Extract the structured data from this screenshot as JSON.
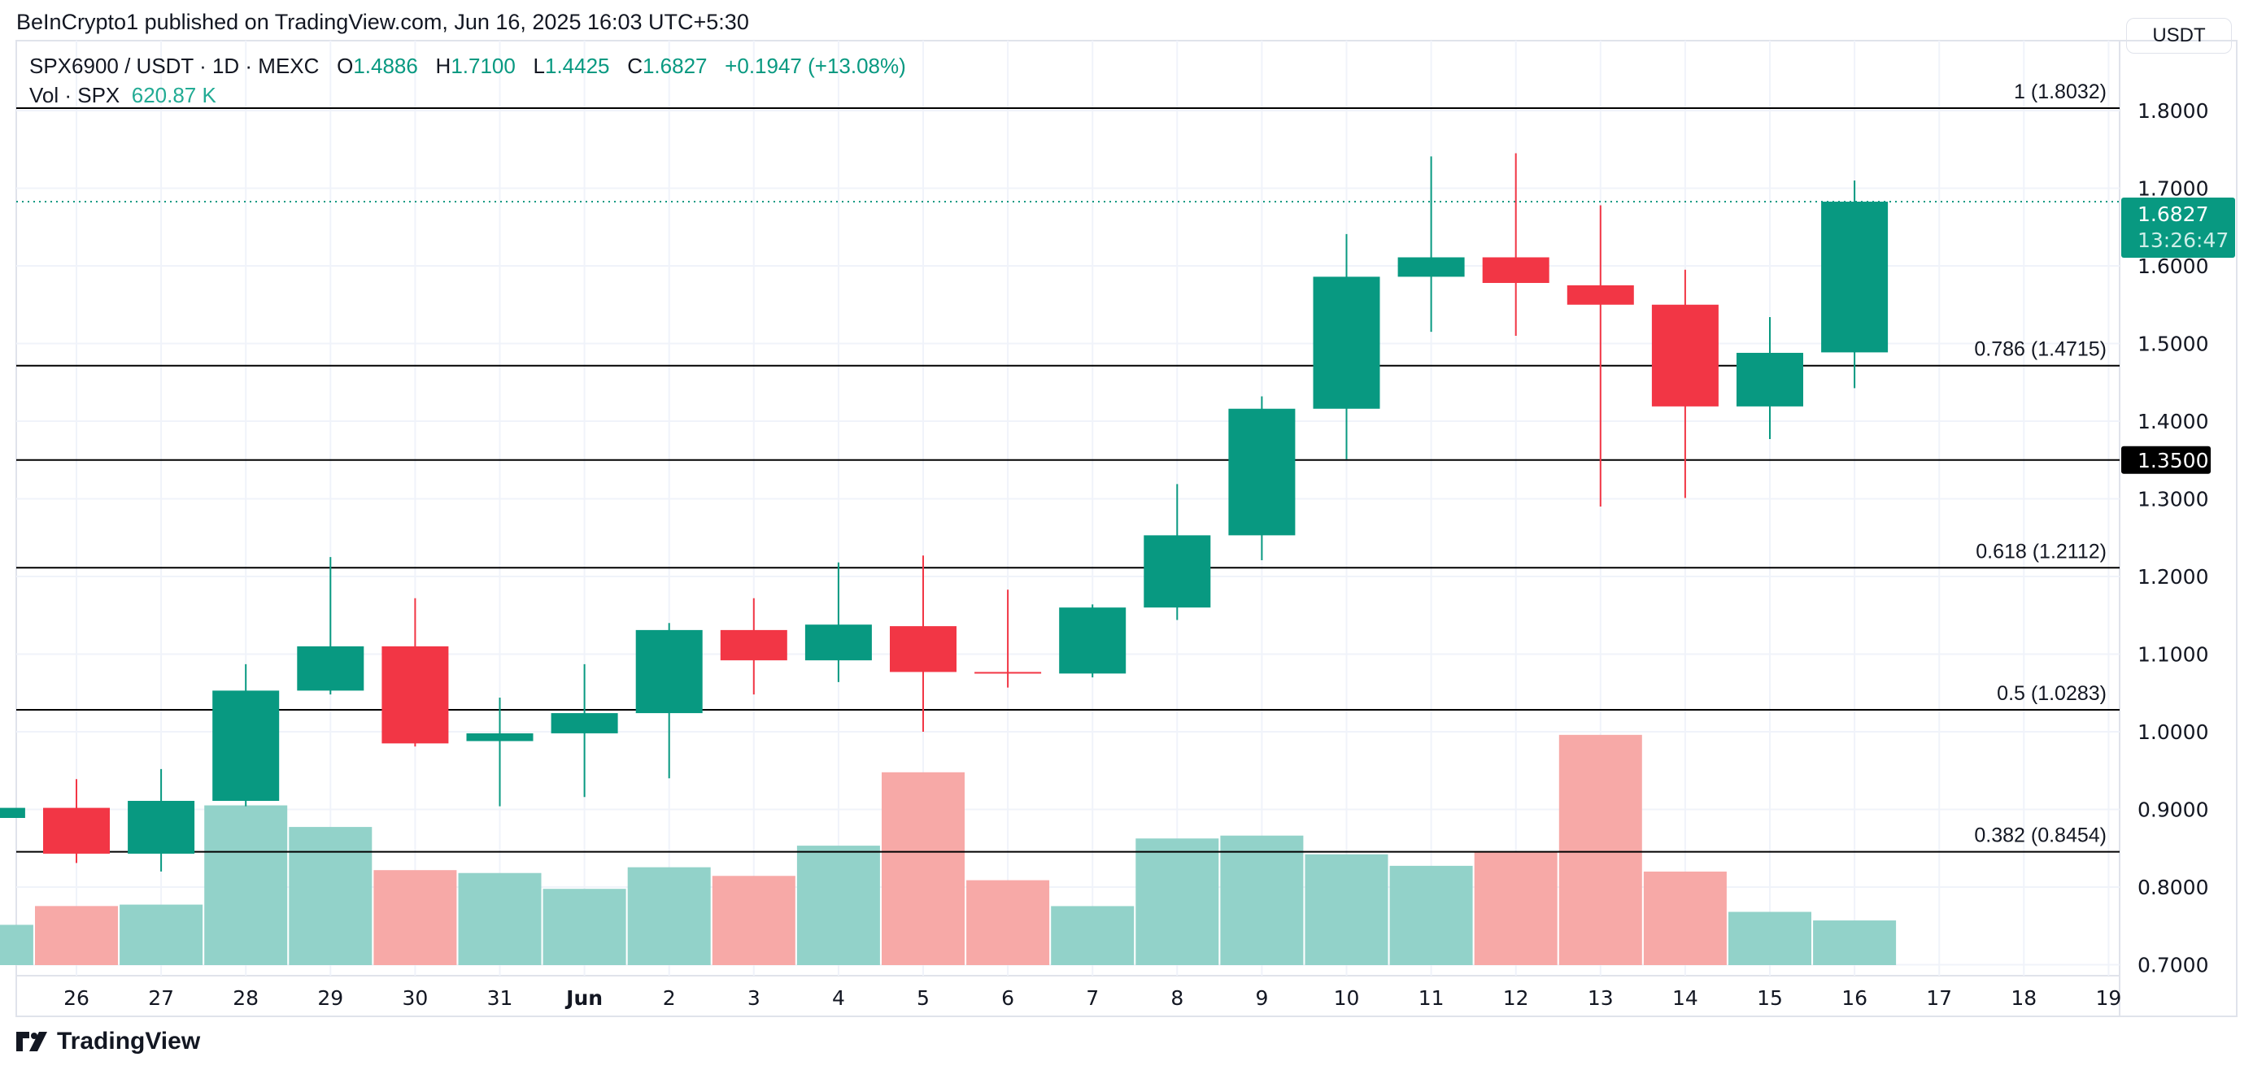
{
  "published": "BeInCrypto1 published on TradingView.com, Jun 16, 2025 16:03 UTC+5:30",
  "legend": {
    "symbol": "SPX6900 / USDT · 1D · MEXC",
    "o_label": "O",
    "o": "1.4886",
    "h_label": "H",
    "h": "1.7100",
    "l_label": "L",
    "l": "1.4425",
    "c_label": "C",
    "c": "1.6827",
    "change": "+0.1947 (+13.08%)",
    "vol_label": "Vol · SPX",
    "vol": "620.87 K"
  },
  "currency": "USDT",
  "footer": "TradingView",
  "colors": {
    "up": "#089981",
    "down": "#F23645",
    "vol_up": "#92d2c9",
    "vol_down": "#f7a9a7"
  },
  "chart_data": {
    "type": "candlestick",
    "ylim": [
      0.7,
      1.8
    ],
    "grid": true,
    "y_ticks": [
      "1.8000",
      "1.7000",
      "1.6000",
      "1.5000",
      "1.4000",
      "1.3000",
      "1.2000",
      "1.1000",
      "1.0000",
      "0.9000",
      "0.8000",
      "0.7000"
    ],
    "x_ticks": [
      "26",
      "27",
      "28",
      "29",
      "30",
      "31",
      "Jun",
      "2",
      "3",
      "4",
      "5",
      "6",
      "7",
      "8",
      "9",
      "10",
      "11",
      "12",
      "13",
      "14",
      "15",
      "16",
      "17",
      "18",
      "19"
    ],
    "candles": [
      {
        "date": "25",
        "o": 0.889,
        "h": 0.902,
        "l": 0.889,
        "c": 0.902,
        "vol_k": 560
      },
      {
        "date": "26",
        "o": 0.902,
        "h": 0.939,
        "l": 0.831,
        "c": 0.843,
        "vol_k": 821
      },
      {
        "date": "27",
        "o": 0.843,
        "h": 0.952,
        "l": 0.82,
        "c": 0.911,
        "vol_k": 841
      },
      {
        "date": "28",
        "o": 0.911,
        "h": 1.087,
        "l": 0.904,
        "c": 1.053,
        "vol_k": 2220
      },
      {
        "date": "29",
        "o": 1.053,
        "h": 1.225,
        "l": 1.048,
        "c": 1.11,
        "vol_k": 1920
      },
      {
        "date": "30",
        "o": 1.11,
        "h": 1.172,
        "l": 0.981,
        "c": 0.985,
        "vol_k": 1320
      },
      {
        "date": "31",
        "o": 0.988,
        "h": 1.044,
        "l": 0.904,
        "c": 0.998,
        "vol_k": 1280
      },
      {
        "date": "Jun 1",
        "o": 0.998,
        "h": 1.087,
        "l": 0.916,
        "c": 1.024,
        "vol_k": 1060
      },
      {
        "date": "2",
        "o": 1.024,
        "h": 1.14,
        "l": 0.94,
        "c": 1.131,
        "vol_k": 1360
      },
      {
        "date": "3",
        "o": 1.131,
        "h": 1.172,
        "l": 1.048,
        "c": 1.092,
        "vol_k": 1240
      },
      {
        "date": "4",
        "o": 1.092,
        "h": 1.218,
        "l": 1.064,
        "c": 1.138,
        "vol_k": 1660
      },
      {
        "date": "5",
        "o": 1.136,
        "h": 1.227,
        "l": 1.0,
        "c": 1.077,
        "vol_k": 2680
      },
      {
        "date": "6",
        "o": 1.077,
        "h": 1.183,
        "l": 1.057,
        "c": 1.075,
        "vol_k": 1180
      },
      {
        "date": "7",
        "o": 1.075,
        "h": 1.164,
        "l": 1.07,
        "c": 1.16,
        "vol_k": 820
      },
      {
        "date": "8",
        "o": 1.16,
        "h": 1.319,
        "l": 1.144,
        "c": 1.253,
        "vol_k": 1760
      },
      {
        "date": "9",
        "o": 1.253,
        "h": 1.432,
        "l": 1.221,
        "c": 1.416,
        "vol_k": 1800
      },
      {
        "date": "10",
        "o": 1.416,
        "h": 1.641,
        "l": 1.351,
        "c": 1.586,
        "vol_k": 1540
      },
      {
        "date": "11",
        "o": 1.586,
        "h": 1.741,
        "l": 1.515,
        "c": 1.611,
        "vol_k": 1380
      },
      {
        "date": "12",
        "o": 1.611,
        "h": 1.745,
        "l": 1.51,
        "c": 1.578,
        "vol_k": 1580
      },
      {
        "date": "13",
        "o": 1.575,
        "h": 1.678,
        "l": 1.29,
        "c": 1.55,
        "vol_k": 3200
      },
      {
        "date": "14",
        "o": 1.55,
        "h": 1.595,
        "l": 1.301,
        "c": 1.419,
        "vol_k": 1300
      },
      {
        "date": "15",
        "o": 1.419,
        "h": 1.534,
        "l": 1.377,
        "c": 1.488,
        "vol_k": 740
      },
      {
        "date": "16",
        "o": 1.4886,
        "h": 1.71,
        "l": 1.4425,
        "c": 1.6827,
        "vol_k": 620.87
      }
    ],
    "fib_levels": [
      {
        "label": "1 (1.8032)",
        "value": 1.8032
      },
      {
        "label": "0.786 (1.4715)",
        "value": 1.4715
      },
      {
        "label": "0.618 (1.2112)",
        "value": 1.2112
      },
      {
        "label": "0.5 (1.0283)",
        "value": 1.0283
      },
      {
        "label": "0.382 (0.8454)",
        "value": 0.8454
      }
    ],
    "horizontal_line": {
      "label": "1.3500",
      "value": 1.35
    },
    "last_price": {
      "label": "1.6827",
      "value": 1.6827,
      "countdown": "13:26:47"
    }
  }
}
